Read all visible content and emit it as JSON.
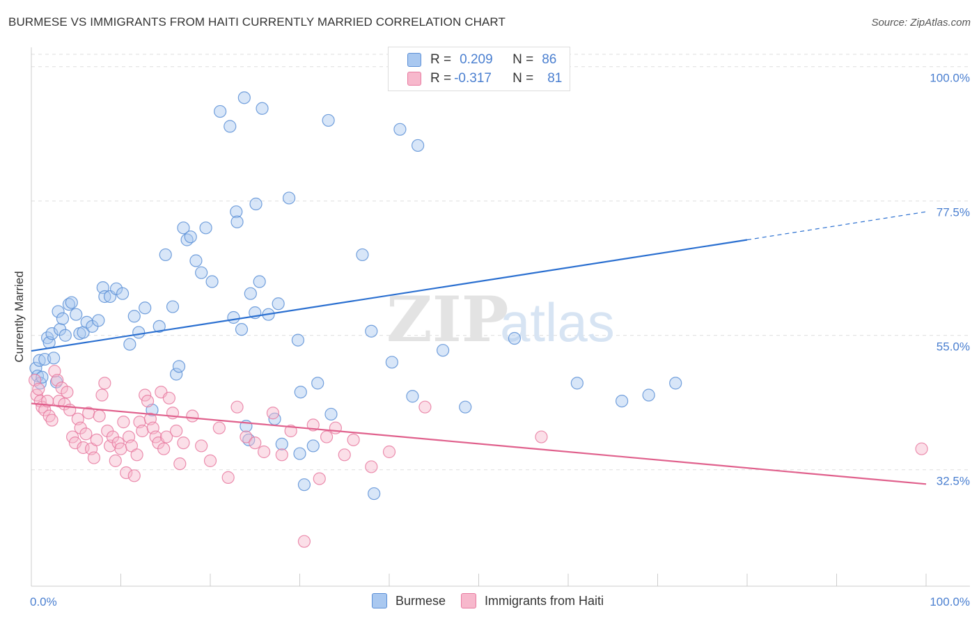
{
  "title": "BURMESE VS IMMIGRANTS FROM HAITI CURRENTLY MARRIED CORRELATION CHART",
  "source": "Source: ZipAtlas.com",
  "watermark": "ZIPatlas",
  "colors": {
    "blue_fill": "#a9c8f0",
    "blue_stroke": "#5b8fd6",
    "blue_line": "#2a6fd0",
    "pink_fill": "#f7b8cc",
    "pink_stroke": "#e87aa0",
    "pink_line": "#e0608c",
    "tick_label": "#4a7fd0",
    "grid": "#dddddd"
  },
  "stats_box": {
    "rows": [
      {
        "r_label": "R =",
        "r_value": "0.209",
        "n_label": "N =",
        "n_value": "86"
      },
      {
        "r_label": "R =",
        "r_value": "-0.317",
        "n_label": "N =",
        "n_value": "81"
      }
    ]
  },
  "legend": {
    "items": [
      {
        "label": "Burmese"
      },
      {
        "label": "Immigrants from Haiti"
      }
    ]
  },
  "chart_data": {
    "type": "scatter",
    "title": "BURMESE VS IMMIGRANTS FROM HAITI CURRENTLY MARRIED CORRELATION CHART",
    "xlabel": "",
    "ylabel": "Currently Married",
    "xlim": [
      0,
      100
    ],
    "ylim": [
      13,
      103
    ],
    "x_tick_labels": [
      "0.0%",
      "100.0%"
    ],
    "y_ticks": [
      32.5,
      55.0,
      77.5,
      100.0
    ],
    "y_tick_labels": [
      "32.5%",
      "55.0%",
      "77.5%",
      "100.0%"
    ],
    "grid": true,
    "legend_position": "bottom-center",
    "series": [
      {
        "name": "Burmese",
        "color": "#a9c8f0",
        "trend": {
          "x": [
            0,
            80
          ],
          "y": [
            52.4,
            71.0
          ],
          "dashed_extension_to_x": 100,
          "dashed_y_end": 75.7
        },
        "points": [
          [
            0.5,
            49.5
          ],
          [
            0.7,
            48.2
          ],
          [
            0.9,
            50.8
          ],
          [
            1.0,
            47.0
          ],
          [
            1.2,
            48.0
          ],
          [
            1.5,
            51.0
          ],
          [
            1.8,
            54.6
          ],
          [
            2.0,
            53.8
          ],
          [
            2.3,
            55.3
          ],
          [
            2.5,
            51.2
          ],
          [
            2.8,
            47.2
          ],
          [
            3.0,
            59.0
          ],
          [
            3.2,
            56.0
          ],
          [
            3.5,
            57.8
          ],
          [
            3.8,
            55.0
          ],
          [
            4.2,
            60.2
          ],
          [
            4.5,
            60.5
          ],
          [
            5.0,
            58.5
          ],
          [
            5.4,
            55.3
          ],
          [
            5.8,
            55.5
          ],
          [
            6.2,
            57.2
          ],
          [
            6.8,
            56.5
          ],
          [
            7.5,
            57.5
          ],
          [
            8.0,
            63.0
          ],
          [
            8.2,
            61.5
          ],
          [
            8.8,
            61.5
          ],
          [
            9.5,
            62.8
          ],
          [
            10.2,
            62.0
          ],
          [
            11.0,
            53.5
          ],
          [
            11.5,
            58.2
          ],
          [
            12.0,
            55.5
          ],
          [
            12.7,
            59.6
          ],
          [
            13.5,
            42.5
          ],
          [
            14.3,
            56.5
          ],
          [
            15.0,
            68.5
          ],
          [
            15.8,
            59.8
          ],
          [
            16.2,
            48.5
          ],
          [
            16.5,
            49.8
          ],
          [
            17.0,
            73.0
          ],
          [
            17.4,
            71.0
          ],
          [
            17.8,
            71.5
          ],
          [
            18.4,
            67.5
          ],
          [
            19.0,
            65.5
          ],
          [
            19.5,
            73.0
          ],
          [
            20.2,
            64.0
          ],
          [
            21.1,
            92.5
          ],
          [
            22.2,
            90.0
          ],
          [
            22.6,
            58.0
          ],
          [
            22.9,
            75.7
          ],
          [
            23.5,
            56.0
          ],
          [
            24.0,
            39.8
          ],
          [
            25.1,
            77.0
          ],
          [
            25.5,
            64.0
          ],
          [
            23.0,
            74.0
          ],
          [
            23.8,
            94.8
          ],
          [
            24.5,
            62.0
          ],
          [
            25.0,
            58.8
          ],
          [
            25.8,
            93.0
          ],
          [
            26.5,
            58.5
          ],
          [
            27.2,
            41.0
          ],
          [
            27.6,
            60.3
          ],
          [
            28.8,
            78.0
          ],
          [
            29.8,
            54.2
          ],
          [
            30.5,
            30.0
          ],
          [
            31.5,
            36.5
          ],
          [
            33.5,
            41.8
          ],
          [
            33.2,
            91.0
          ],
          [
            32.0,
            47.0
          ],
          [
            30.1,
            45.5
          ],
          [
            37.0,
            68.5
          ],
          [
            38.0,
            55.7
          ],
          [
            38.3,
            28.5
          ],
          [
            40.3,
            50.5
          ],
          [
            41.2,
            89.5
          ],
          [
            42.6,
            44.8
          ],
          [
            43.2,
            86.8
          ],
          [
            46.0,
            52.5
          ],
          [
            48.5,
            43.0
          ],
          [
            54.0,
            54.5
          ],
          [
            61.0,
            47.0
          ],
          [
            66.0,
            44.0
          ],
          [
            69.0,
            45.0
          ],
          [
            72.0,
            47.0
          ],
          [
            28.0,
            36.8
          ],
          [
            24.3,
            37.5
          ],
          [
            30.0,
            35.2
          ]
        ]
      },
      {
        "name": "Immigrants from Haiti",
        "color": "#f7b8cc",
        "trend": {
          "x": [
            0,
            100
          ],
          "y": [
            43.6,
            30.1
          ]
        },
        "points": [
          [
            0.4,
            47.5
          ],
          [
            0.6,
            45.0
          ],
          [
            0.8,
            46.0
          ],
          [
            1.0,
            44.0
          ],
          [
            1.2,
            43.0
          ],
          [
            1.5,
            42.5
          ],
          [
            1.8,
            44.0
          ],
          [
            2.0,
            41.5
          ],
          [
            2.3,
            40.8
          ],
          [
            2.6,
            49.0
          ],
          [
            2.9,
            47.5
          ],
          [
            3.1,
            44.0
          ],
          [
            3.4,
            46.2
          ],
          [
            3.7,
            43.5
          ],
          [
            4.0,
            45.5
          ],
          [
            4.3,
            42.5
          ],
          [
            4.6,
            38.0
          ],
          [
            4.9,
            37.0
          ],
          [
            5.2,
            41.0
          ],
          [
            5.5,
            39.5
          ],
          [
            5.8,
            36.2
          ],
          [
            6.1,
            38.5
          ],
          [
            6.4,
            42.0
          ],
          [
            6.7,
            36.0
          ],
          [
            7.0,
            34.5
          ],
          [
            7.3,
            37.5
          ],
          [
            7.6,
            41.5
          ],
          [
            7.9,
            45.0
          ],
          [
            8.2,
            47.0
          ],
          [
            8.5,
            39.0
          ],
          [
            8.8,
            36.5
          ],
          [
            9.1,
            38.0
          ],
          [
            9.4,
            34.0
          ],
          [
            9.7,
            37.0
          ],
          [
            10.0,
            36.0
          ],
          [
            10.3,
            40.5
          ],
          [
            10.6,
            32.0
          ],
          [
            10.9,
            38.0
          ],
          [
            11.2,
            36.5
          ],
          [
            11.5,
            31.5
          ],
          [
            11.8,
            35.0
          ],
          [
            12.1,
            40.5
          ],
          [
            12.4,
            39.0
          ],
          [
            12.7,
            45.0
          ],
          [
            13.0,
            44.0
          ],
          [
            13.3,
            41.0
          ],
          [
            13.6,
            39.5
          ],
          [
            13.9,
            38.0
          ],
          [
            14.2,
            37.0
          ],
          [
            14.5,
            45.5
          ],
          [
            14.8,
            36.0
          ],
          [
            15.1,
            38.0
          ],
          [
            15.4,
            44.5
          ],
          [
            15.8,
            42.0
          ],
          [
            16.2,
            39.0
          ],
          [
            16.6,
            33.5
          ],
          [
            17.0,
            37.0
          ],
          [
            18.0,
            41.5
          ],
          [
            19.0,
            36.5
          ],
          [
            20.0,
            34.0
          ],
          [
            21.0,
            39.5
          ],
          [
            22.0,
            31.2
          ],
          [
            23.0,
            43.0
          ],
          [
            24.0,
            38.0
          ],
          [
            25.0,
            37.0
          ],
          [
            26.0,
            35.5
          ],
          [
            27.0,
            42.0
          ],
          [
            28.0,
            35.0
          ],
          [
            29.0,
            39.0
          ],
          [
            30.5,
            20.5
          ],
          [
            31.5,
            40.0
          ],
          [
            32.2,
            31.0
          ],
          [
            33.0,
            38.0
          ],
          [
            34.0,
            39.5
          ],
          [
            35.0,
            35.0
          ],
          [
            36.0,
            37.5
          ],
          [
            38.0,
            33.0
          ],
          [
            40.0,
            35.5
          ],
          [
            44.0,
            43.0
          ],
          [
            57.0,
            38.0
          ],
          [
            99.5,
            36.0
          ]
        ]
      }
    ]
  }
}
